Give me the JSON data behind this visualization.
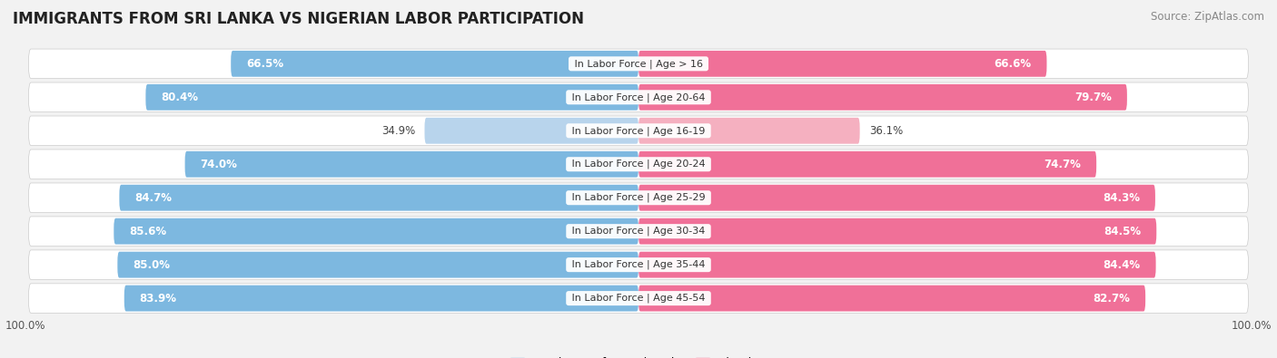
{
  "title": "IMMIGRANTS FROM SRI LANKA VS NIGERIAN LABOR PARTICIPATION",
  "source": "Source: ZipAtlas.com",
  "categories": [
    "In Labor Force | Age > 16",
    "In Labor Force | Age 20-64",
    "In Labor Force | Age 16-19",
    "In Labor Force | Age 20-24",
    "In Labor Force | Age 25-29",
    "In Labor Force | Age 30-34",
    "In Labor Force | Age 35-44",
    "In Labor Force | Age 45-54"
  ],
  "sri_lanka_values": [
    66.5,
    80.4,
    34.9,
    74.0,
    84.7,
    85.6,
    85.0,
    83.9
  ],
  "nigerian_values": [
    66.6,
    79.7,
    36.1,
    74.7,
    84.3,
    84.5,
    84.4,
    82.7
  ],
  "sri_lanka_color": "#7db8e0",
  "sri_lanka_color_light": "#b8d4ec",
  "nigerian_color": "#f07098",
  "nigerian_color_light": "#f5b0c0",
  "label_sri_lanka": "Immigrants from Sri Lanka",
  "label_nigerian": "Nigerian",
  "max_value": 100.0,
  "background_color": "#f2f2f2",
  "row_bg_light": "#f8f8f8",
  "row_bg_dark": "#ebebeb",
  "title_fontsize": 12,
  "source_fontsize": 8.5,
  "bar_label_fontsize": 8.5,
  "category_fontsize": 8.0,
  "xlabel_fontsize": 8.5
}
